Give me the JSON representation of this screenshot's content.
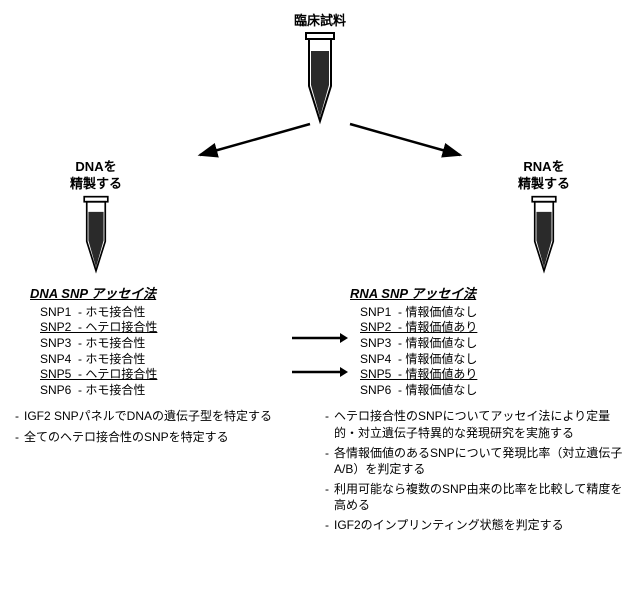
{
  "colors": {
    "ink": "#000000",
    "liquid": "#2a2a2a",
    "bg": "#ffffff"
  },
  "title": "臨床試料",
  "left": {
    "label1": "DNAを",
    "label2": "精製する"
  },
  "right": {
    "label1": "RNAを",
    "label2": "精製する"
  },
  "dna": {
    "title": "DNA SNP アッセイ法",
    "rows": [
      {
        "k": "SNP1",
        "v": "- ホモ接合性",
        "u": false
      },
      {
        "k": "SNP2",
        "v": "- ヘテロ接合性",
        "u": true
      },
      {
        "k": "SNP3",
        "v": "- ホモ接合性",
        "u": false
      },
      {
        "k": "SNP4",
        "v": "- ホモ接合性",
        "u": false
      },
      {
        "k": "SNP5",
        "v": "- ヘテロ接合性",
        "u": true
      },
      {
        "k": "SNP6",
        "v": "- ホモ接合性",
        "u": false
      }
    ]
  },
  "rna": {
    "title": "RNA SNP アッセイ法",
    "rows": [
      {
        "k": "SNP1",
        "v": "- 情報価値なし",
        "u": false
      },
      {
        "k": "SNP2",
        "v": "- 情報価値あり",
        "u": true
      },
      {
        "k": "SNP3",
        "v": "- 情報価値なし",
        "u": false
      },
      {
        "k": "SNP4",
        "v": "- 情報価値なし",
        "u": false
      },
      {
        "k": "SNP5",
        "v": "- 情報価値あり",
        "u": true
      },
      {
        "k": "SNP6",
        "v": "- 情報価値なし",
        "u": false
      }
    ]
  },
  "notesLeft": [
    "IGF2 SNPパネルでDNAの遺伝子型を特定する",
    "全てのヘテロ接合性のSNPを特定する"
  ],
  "notesRight": [
    "ヘテロ接合性のSNPについてアッセイ法により定量的・対立遺伝子特異的な発現研究を実施する",
    "各情報価値のあるSNPについて発現比率（対立遺伝子A/B）を判定する",
    "利用可能なら複数のSNP由来の比率を比較して精度を高める",
    "IGF2のインプリンティング状態を判定する"
  ]
}
